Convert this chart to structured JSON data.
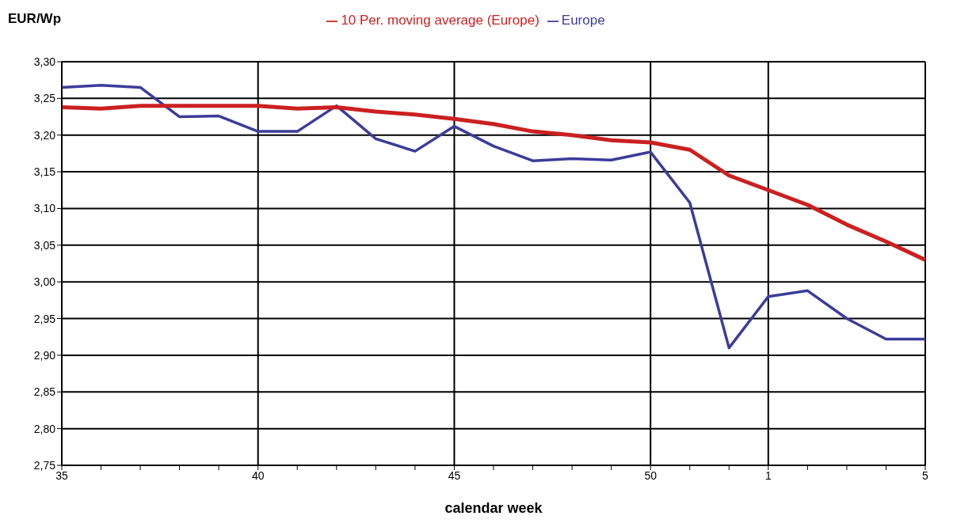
{
  "chart_data": {
    "type": "line",
    "ylabel": "EUR/Wp",
    "xlabel": "calendar week",
    "categories": [
      "35",
      null,
      null,
      null,
      null,
      "40",
      null,
      null,
      null,
      null,
      "45",
      null,
      null,
      null,
      null,
      "50",
      null,
      null,
      "1",
      null,
      null,
      null,
      "5"
    ],
    "series": [
      {
        "name": "Europe",
        "color": "#3c3c9a",
        "values": [
          3.265,
          3.268,
          3.265,
          3.225,
          3.226,
          3.205,
          3.205,
          3.24,
          3.195,
          3.178,
          3.212,
          3.185,
          3.165,
          3.168,
          3.166,
          3.177,
          3.108,
          2.91,
          2.98,
          2.988,
          2.95,
          2.922,
          2.922
        ]
      },
      {
        "name": "10 Per. moving average (Europe)",
        "color": "#cc2020",
        "values": [
          3.238,
          3.236,
          3.24,
          3.24,
          3.24,
          3.24,
          3.236,
          3.238,
          3.232,
          3.228,
          3.222,
          3.215,
          3.205,
          3.2,
          3.193,
          3.19,
          3.18,
          3.145,
          3.125,
          3.105,
          3.078,
          3.055,
          3.03
        ]
      }
    ],
    "ylim": [
      2.75,
      3.3
    ],
    "yticks": [
      {
        "value": 2.75,
        "label": "2,75"
      },
      {
        "value": 2.8,
        "label": "2,80"
      },
      {
        "value": 2.85,
        "label": "2,85"
      },
      {
        "value": 2.9,
        "label": "2,90"
      },
      {
        "value": 2.95,
        "label": "2,95"
      },
      {
        "value": 3.0,
        "label": "3,00"
      },
      {
        "value": 3.05,
        "label": "3,05"
      },
      {
        "value": 3.1,
        "label": "3,10"
      },
      {
        "value": 3.15,
        "label": "3,15"
      },
      {
        "value": 3.2,
        "label": "3,20"
      },
      {
        "value": 3.25,
        "label": "3,25"
      },
      {
        "value": 3.3,
        "label": "3,30"
      }
    ],
    "grid": true,
    "legend": "top",
    "marker": "none",
    "line_style": "solid"
  }
}
